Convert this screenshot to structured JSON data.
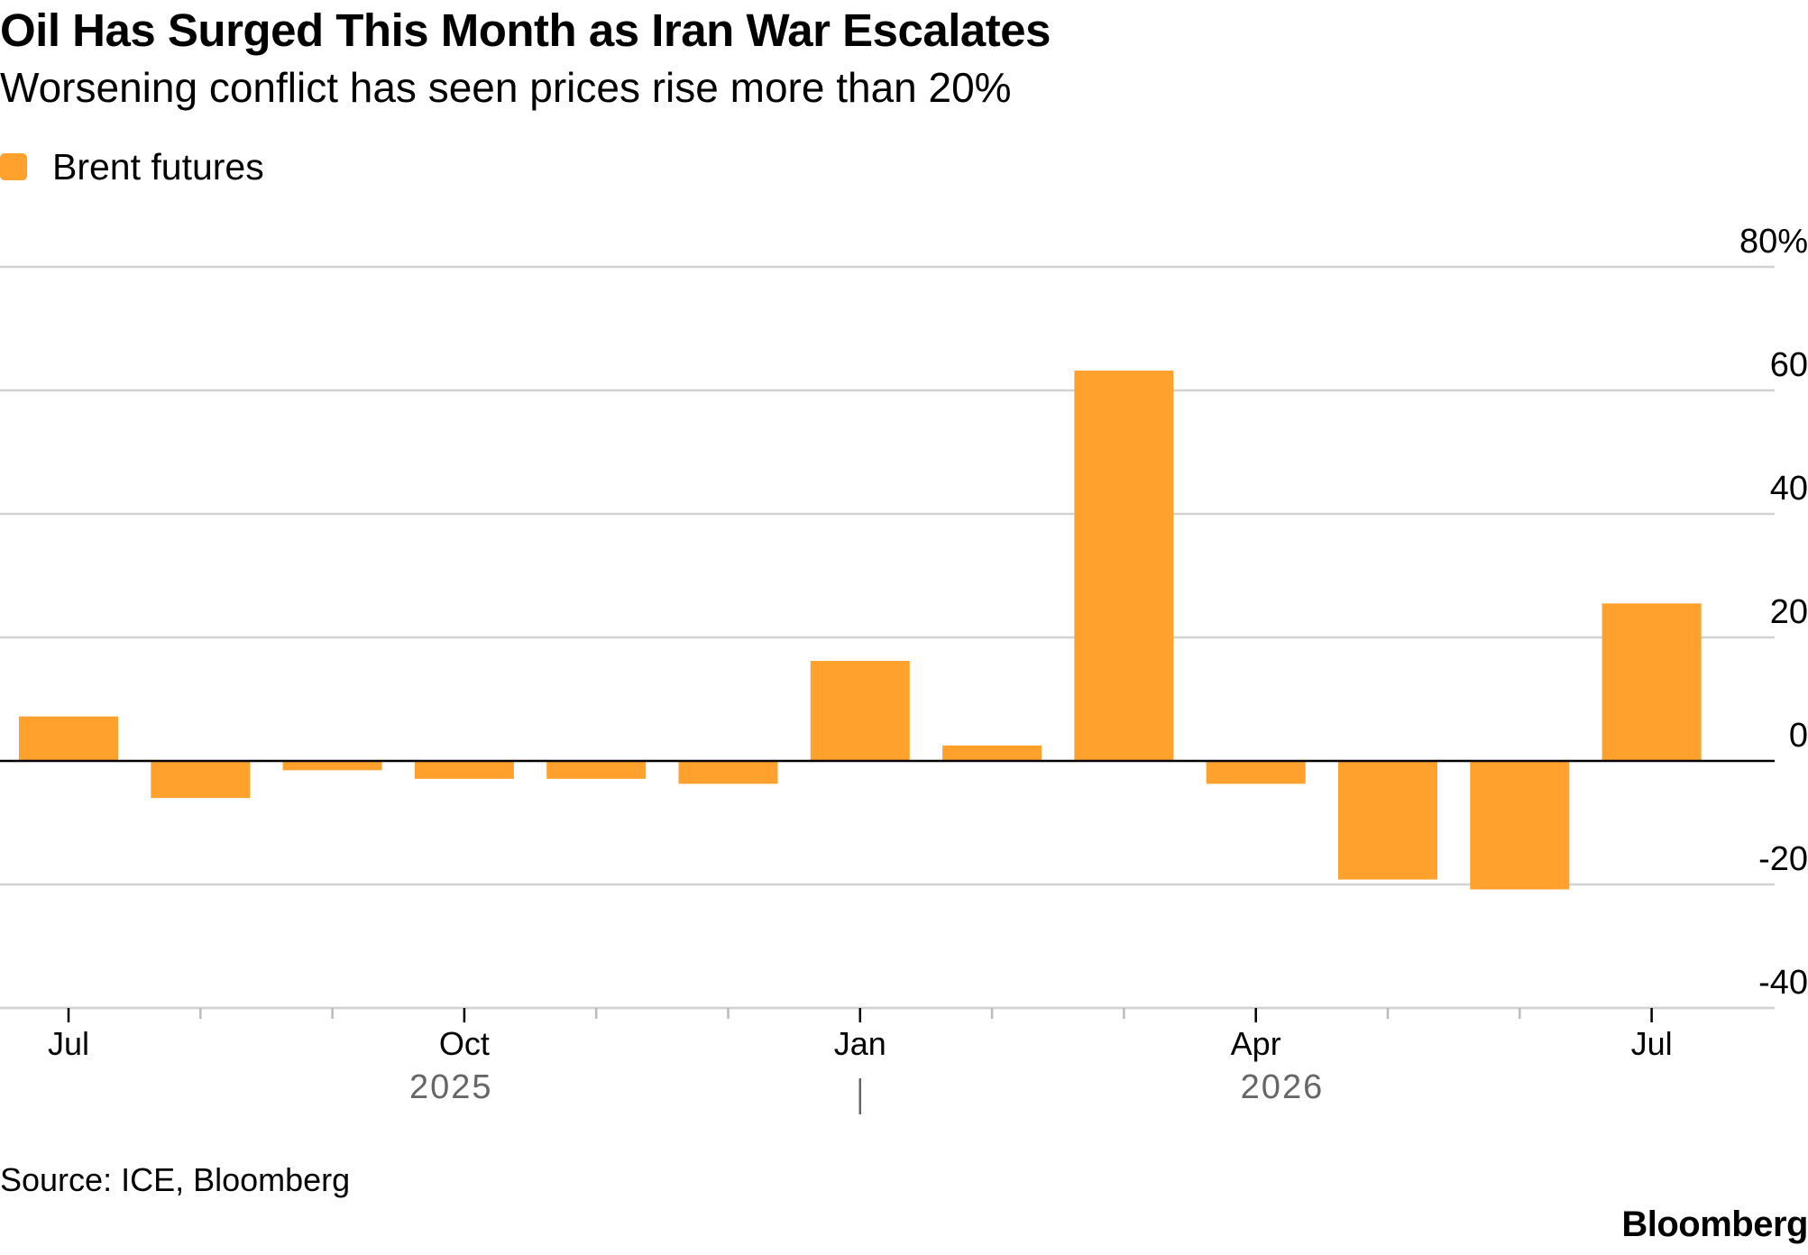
{
  "header": {
    "title": "Oil Has Surged This Month as Iran War Escalates",
    "subtitle": "Worsening conflict has seen prices rise more than 20%"
  },
  "legend": {
    "label": "Brent futures",
    "color": "#ffa12c"
  },
  "footer": {
    "source": "Source: ICE, Bloomberg",
    "brand": "Bloomberg"
  },
  "chart_data": {
    "type": "bar",
    "categories": [
      "2025-07",
      "2025-08",
      "2025-09",
      "2025-10",
      "2025-11",
      "2025-12",
      "2026-01",
      "2026-02",
      "2026-03",
      "2026-04",
      "2026-05",
      "2026-06",
      "2026-07"
    ],
    "series": [
      {
        "name": "Brent futures",
        "color": "#ffa12c",
        "values": [
          7.2,
          -6.0,
          -1.5,
          -2.9,
          -2.9,
          -3.7,
          16.2,
          2.5,
          63.2,
          -3.7,
          -19.2,
          -20.8,
          25.5
        ]
      }
    ],
    "ylim": [
      -40,
      80
    ],
    "y_ticks": [
      {
        "value": 80,
        "label": "80%"
      },
      {
        "value": 60,
        "label": "60"
      },
      {
        "value": 40,
        "label": "40"
      },
      {
        "value": 20,
        "label": "20"
      },
      {
        "value": 0,
        "label": "0"
      },
      {
        "value": -20,
        "label": "-20"
      },
      {
        "value": -40,
        "label": "-40"
      }
    ],
    "x_ticks": [
      {
        "label": "Jul"
      },
      {
        "label": ""
      },
      {
        "label": ""
      },
      {
        "label": "Oct"
      },
      {
        "label": ""
      },
      {
        "label": ""
      },
      {
        "label": "Jan"
      },
      {
        "label": ""
      },
      {
        "label": ""
      },
      {
        "label": "Apr"
      },
      {
        "label": ""
      },
      {
        "label": ""
      },
      {
        "label": "Jul"
      }
    ],
    "year_labels": [
      {
        "label": "2025",
        "month_index": 2.9
      },
      {
        "label": "2026",
        "month_index": 9.2
      }
    ],
    "year_divider_month_index": 6,
    "grid": true,
    "legend_position": "top-left",
    "colors": {
      "grid": "#d2d2d2",
      "zero_line": "#000000",
      "axis_text": "#000000",
      "year_text": "#666666"
    }
  }
}
